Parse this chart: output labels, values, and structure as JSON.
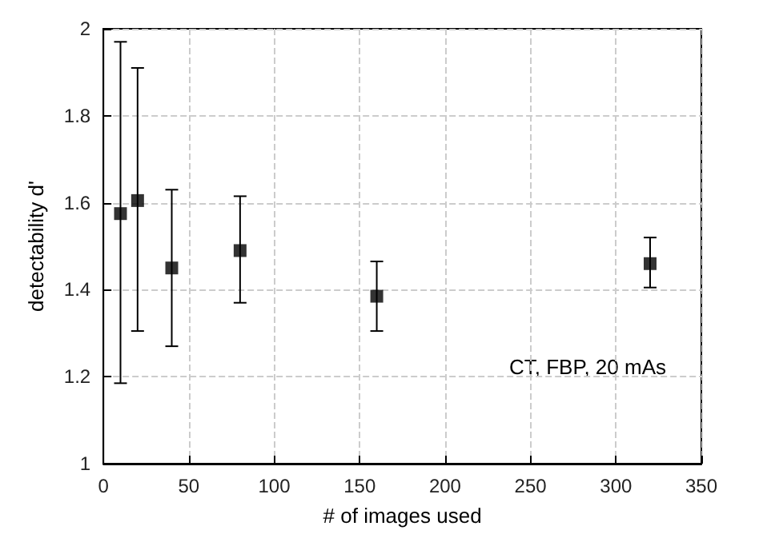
{
  "chart_data": {
    "type": "scatter",
    "xlabel": "# of images used",
    "ylabel": "detectability d'",
    "x": [
      10,
      20,
      40,
      80,
      160,
      320
    ],
    "series": [
      {
        "color": "#000000",
        "values": [
          1.575,
          1.605,
          1.45,
          1.49,
          1.385,
          1.46
        ],
        "errors": [
          [
            1.185,
            1.97
          ],
          [
            1.305,
            1.91
          ],
          [
            1.27,
            1.63
          ],
          [
            1.37,
            1.615
          ],
          [
            1.305,
            1.465
          ],
          [
            1.405,
            1.52
          ]
        ]
      }
    ],
    "xlim": [
      0,
      350
    ],
    "xticks": [
      0,
      50,
      100,
      150,
      200,
      250,
      300,
      350
    ],
    "ylim": [
      1,
      2
    ],
    "yticks": [
      1,
      1.2,
      1.4,
      1.6,
      1.8,
      2
    ],
    "grid": true,
    "marker": "square",
    "annotations": [
      "CT, FBP, 20 mAs"
    ]
  }
}
